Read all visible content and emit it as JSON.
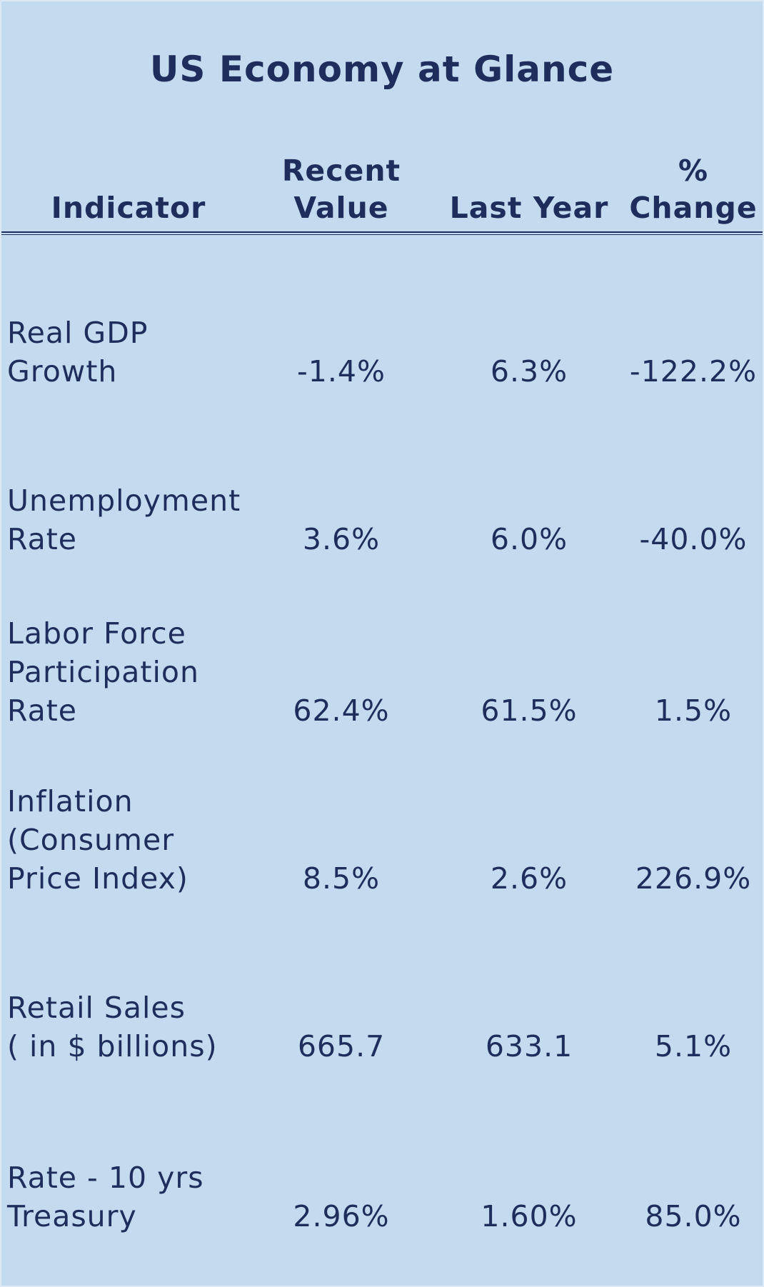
{
  "title": "US Economy at Glance",
  "table": {
    "header": [
      "Indicator",
      "Recent\nValue",
      "Last Year",
      "%\nChange"
    ],
    "rows": [
      [
        "Real GDP\nGrowth",
        "-1.4%",
        "6.3%",
        "-122.2%"
      ],
      [
        "Unemployment\nRate",
        "3.6%",
        "6.0%",
        "-40.0%"
      ],
      [
        "Labor Force\nParticipation\nRate",
        "62.4%",
        "61.5%",
        "1.5%"
      ],
      [
        "Inflation\n(Consumer\nPrice Index)",
        "8.5%",
        "2.6%",
        "226.9%"
      ],
      [
        "Retail Sales\n( in $ billions)",
        "665.7",
        "633.1",
        "5.1%"
      ],
      [
        "Rate - 10 yrs\nTreasury",
        "2.96%",
        "1.60%",
        "85.0%"
      ]
    ]
  }
}
